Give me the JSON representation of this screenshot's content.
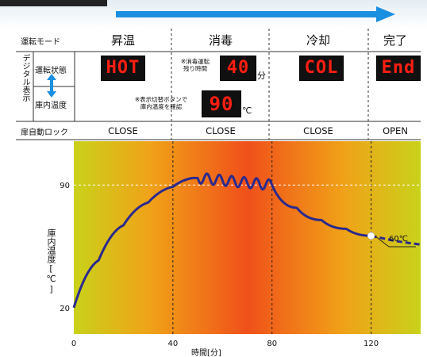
{
  "header": {
    "mode_label": "運転モード",
    "phases": [
      "昇温",
      "消毒",
      "冷却",
      "完了"
    ]
  },
  "digital": {
    "group_label": "デジタル表示",
    "status_label": "運転状態",
    "temp_label": "庫内温度",
    "displays": [
      "HOT",
      "40",
      "COL",
      "End"
    ],
    "remaining_note": "※消毒運転\n残り時間",
    "remaining_unit": "分",
    "temp_note": "※表示切替ボタンで\n庫内温度を確認",
    "temp_display": "90",
    "temp_unit": "℃"
  },
  "door_lock": {
    "label": "扉自動ロック",
    "states": [
      "CLOSE",
      "CLOSE",
      "CLOSE",
      "OPEN"
    ]
  },
  "colors": {
    "arrow": "#1b8fe0",
    "curve": "#2b2a8c",
    "gradient_edge": "#c9d21a",
    "gradient_center": "#f0501a"
  },
  "chart_data": {
    "type": "line",
    "ylabel": "庫内温度[℃]",
    "xlabel": "時間[分]",
    "x_ticks": [
      0,
      40,
      80,
      120
    ],
    "y_ticks": [
      20,
      90
    ],
    "xlim": [
      0,
      140
    ],
    "ylim": [
      5,
      115
    ],
    "vlines": [
      40,
      80,
      120
    ],
    "hline": 90,
    "annotation": "60℃",
    "series": [
      {
        "points": [
          [
            0,
            20
          ],
          [
            10,
            47
          ],
          [
            20,
            67
          ],
          [
            30,
            80
          ],
          [
            40,
            89
          ],
          [
            48,
            94
          ],
          [
            50,
            94
          ],
          [
            80,
            90
          ],
          [
            90,
            77
          ],
          [
            100,
            70
          ],
          [
            110,
            65
          ],
          [
            120,
            61
          ]
        ],
        "oscillation": {
          "from": 50,
          "to": 80,
          "cycles": 6,
          "amplitude": 3
        }
      }
    ],
    "projection": {
      "points": [
        [
          120,
          61
        ],
        [
          130,
          58
        ],
        [
          140,
          56
        ]
      ],
      "style": "dashed"
    },
    "marker": {
      "x": 120,
      "y": 61
    }
  }
}
